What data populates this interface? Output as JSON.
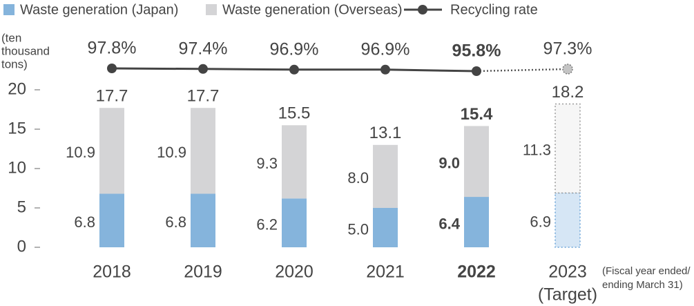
{
  "chart_data": {
    "type": "bar",
    "stacked": true,
    "ylabel_lines": [
      "(ten",
      "thousand",
      "tons)"
    ],
    "xnote_lines": [
      "(Fiscal year ended/",
      "ending March 31)"
    ],
    "categories": [
      "2018",
      "2019",
      "2020",
      "2021",
      "2022",
      "2023"
    ],
    "category_notes": [
      null,
      null,
      null,
      null,
      null,
      "(Target)"
    ],
    "bold_index": 4,
    "target_index": 5,
    "ylim": [
      0,
      20
    ],
    "yticks": [
      0,
      5,
      10,
      15,
      20
    ],
    "y2lim": [
      0,
      100
    ],
    "series": [
      {
        "name": "Waste generation (Japan)",
        "color": "#85b4dc",
        "target_color": "#d6e6f5",
        "values": [
          6.8,
          6.8,
          6.2,
          5,
          6.4,
          6.9
        ],
        "value_labels": [
          "6.8",
          "6.8",
          "6.2",
          "5.0",
          "6.4",
          "6.9"
        ]
      },
      {
        "name": "Waste generation (Overseas)",
        "color": "#d4d4d6",
        "target_color": "#f6f6f6",
        "values": [
          10.9,
          10.9,
          9.3,
          8,
          9,
          11.3
        ],
        "value_labels": [
          "10.9",
          "10.9",
          "9.3",
          "8.0",
          "9.0",
          "11.3"
        ]
      },
      {
        "name": "Recycling rate",
        "type": "line",
        "axis": "y2",
        "color": "#444444",
        "values": [
          97.8,
          97.4,
          96.9,
          96.9,
          95.8,
          97.3
        ],
        "value_labels": [
          "97.8%",
          "97.4%",
          "96.9%",
          "96.9%",
          "95.8%",
          "97.3%"
        ]
      }
    ],
    "totals": [
      17.7,
      17.7,
      15.5,
      13.1,
      15.4,
      18.2
    ]
  }
}
